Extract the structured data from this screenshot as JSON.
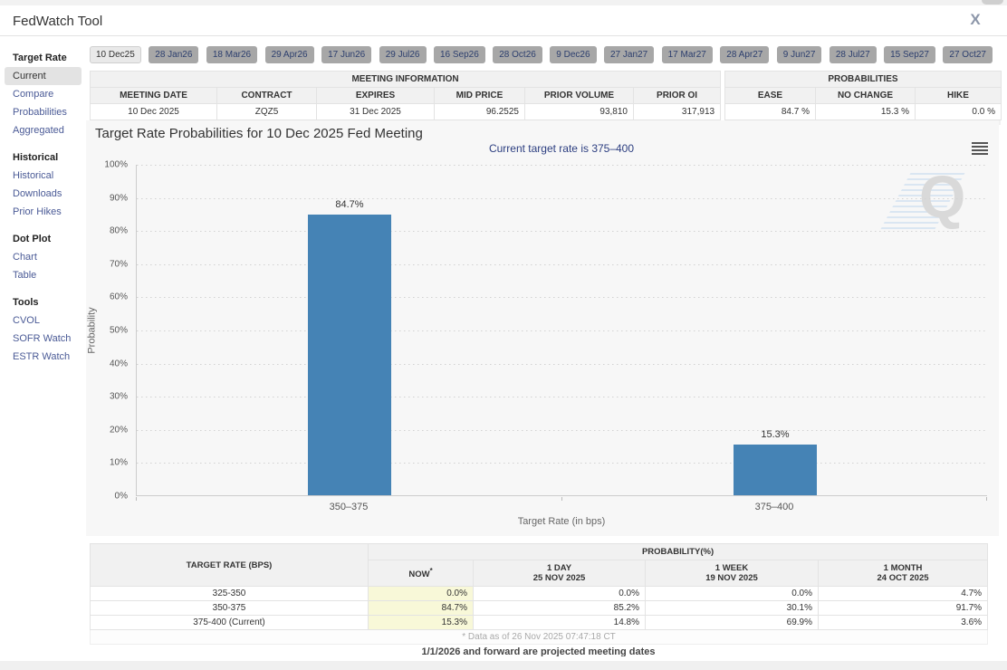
{
  "header": {
    "title": "FedWatch Tool",
    "close_label": "X"
  },
  "sidebar": {
    "sections": [
      {
        "title": "Target Rate",
        "items": [
          {
            "label": "Current"
          },
          {
            "label": "Compare"
          },
          {
            "label": "Probabilities"
          },
          {
            "label": "Aggregated"
          }
        ]
      },
      {
        "title": "Historical",
        "items": [
          {
            "label": "Historical"
          },
          {
            "label": "Downloads"
          },
          {
            "label": "Prior Hikes"
          }
        ]
      },
      {
        "title": "Dot Plot",
        "items": [
          {
            "label": "Chart"
          },
          {
            "label": "Table"
          }
        ]
      },
      {
        "title": "Tools",
        "items": [
          {
            "label": "CVOL"
          },
          {
            "label": "SOFR Watch"
          },
          {
            "label": "ESTR Watch"
          }
        ]
      }
    ]
  },
  "tabs": {
    "selected": "10 Dec25",
    "items": [
      "10 Dec25",
      "28 Jan26",
      "18 Mar26",
      "29 Apr26",
      "17 Jun26",
      "29 Jul26",
      "16 Sep26",
      "28 Oct26",
      "9 Dec26",
      "27 Jan27",
      "17 Mar27",
      "28 Apr27",
      "9 Jun27",
      "28 Jul27",
      "15 Sep27",
      "27 Oct27"
    ]
  },
  "meeting_info": {
    "title": "MEETING INFORMATION",
    "columns": [
      "MEETING DATE",
      "CONTRACT",
      "EXPIRES",
      "MID PRICE",
      "PRIOR VOLUME",
      "PRIOR OI"
    ],
    "row": {
      "meeting_date": "10 Dec 2025",
      "contract": "ZQZ5",
      "expires": "31 Dec 2025",
      "mid_price": "96.2525",
      "prior_volume": "93,810",
      "prior_oi": "317,913"
    }
  },
  "probabilities_summary": {
    "title": "PROBABILITIES",
    "columns": [
      "EASE",
      "NO CHANGE",
      "HIKE"
    ],
    "row": {
      "ease": "84.7 %",
      "no_change": "15.3 %",
      "hike": "0.0 %"
    }
  },
  "chart_data": {
    "type": "bar",
    "title": "Target Rate Probabilities for 10 Dec 2025 Fed Meeting",
    "subtitle": "Current target rate is 375–400",
    "categories": [
      "350–375",
      "375–400"
    ],
    "values": [
      84.7,
      15.3
    ],
    "value_labels": [
      "84.7%",
      "15.3%"
    ],
    "xlabel": "Target Rate (in bps)",
    "ylabel": "Probability",
    "ylim": [
      0,
      100
    ],
    "yticks": [
      "100%",
      "90%",
      "80%",
      "70%",
      "60%",
      "50%",
      "40%",
      "30%",
      "20%",
      "10%",
      "0%"
    ],
    "grid": "dotted horizontal",
    "legend": "none",
    "bar_color": "#4583b5"
  },
  "bottom_table": {
    "col1_header": "TARGET RATE (BPS)",
    "group_header": "PROBABILITY(%)",
    "columns": [
      {
        "line1": "NOW",
        "sup": "*",
        "line2": ""
      },
      {
        "line1": "1 DAY",
        "line2": "25 NOV 2025"
      },
      {
        "line1": "1 WEEK",
        "line2": "19 NOV 2025"
      },
      {
        "line1": "1 MONTH",
        "line2": "24 OCT 2025"
      }
    ],
    "rows": [
      {
        "rate": "325-350",
        "now": "0.0%",
        "day": "0.0%",
        "week": "0.0%",
        "month": "4.7%"
      },
      {
        "rate": "350-375",
        "now": "84.7%",
        "day": "85.2%",
        "week": "30.1%",
        "month": "91.7%"
      },
      {
        "rate": "375-400 (Current)",
        "now": "15.3%",
        "day": "14.8%",
        "week": "69.9%",
        "month": "3.6%"
      }
    ],
    "footnote": "* Data as of 26 Nov 2025 07:47:18 CT"
  },
  "footnotes": {
    "projected": "1/1/2026 and forward are projected meeting dates"
  }
}
